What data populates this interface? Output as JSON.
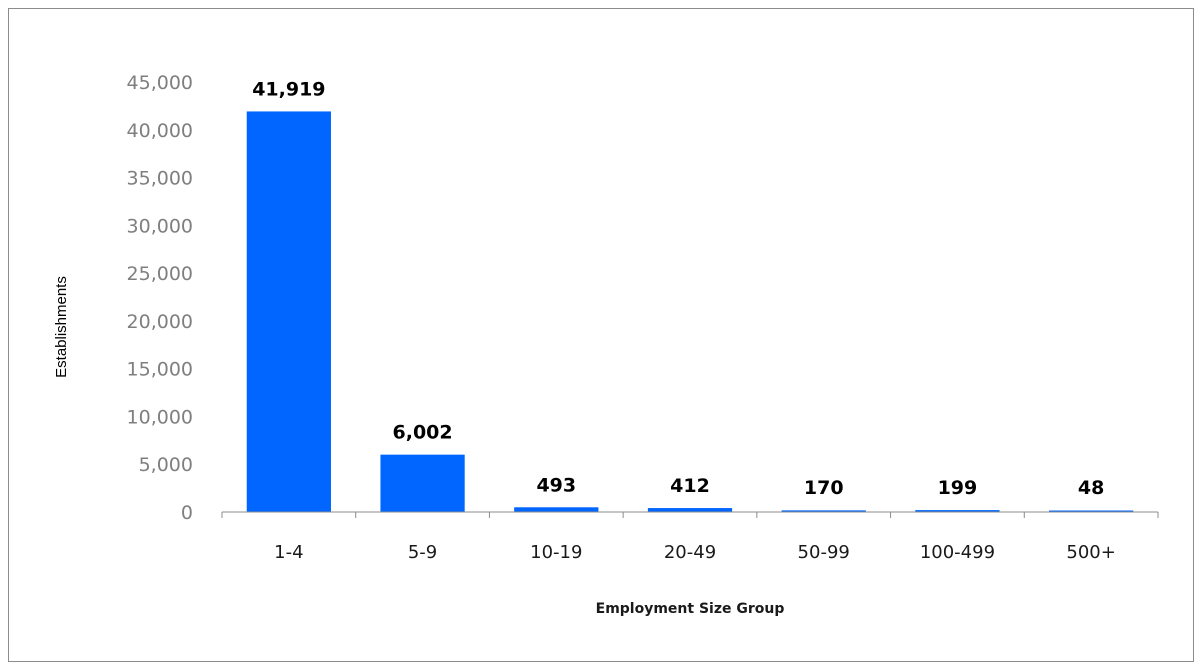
{
  "chart_data": {
    "type": "bar",
    "categories": [
      "1-4",
      "5-9",
      "10-19",
      "20-49",
      "50-99",
      "100-499",
      "500+"
    ],
    "values": [
      41919,
      6002,
      493,
      412,
      170,
      199,
      48
    ],
    "value_labels": [
      "41,919",
      "6,002",
      "493",
      "412",
      "170",
      "199",
      "48"
    ],
    "xlabel": "Employment Size Group",
    "ylabel": "Establishments",
    "ylim": [
      0,
      45000
    ],
    "yticks": [
      0,
      5000,
      10000,
      15000,
      20000,
      25000,
      30000,
      35000,
      40000,
      45000
    ],
    "ytick_labels": [
      "0",
      "5,000",
      "10,000",
      "15,000",
      "20,000",
      "25,000",
      "30,000",
      "35,000",
      "40,000",
      "45,000"
    ],
    "bar_color": "#0066ff",
    "grid": false,
    "legend": false
  }
}
